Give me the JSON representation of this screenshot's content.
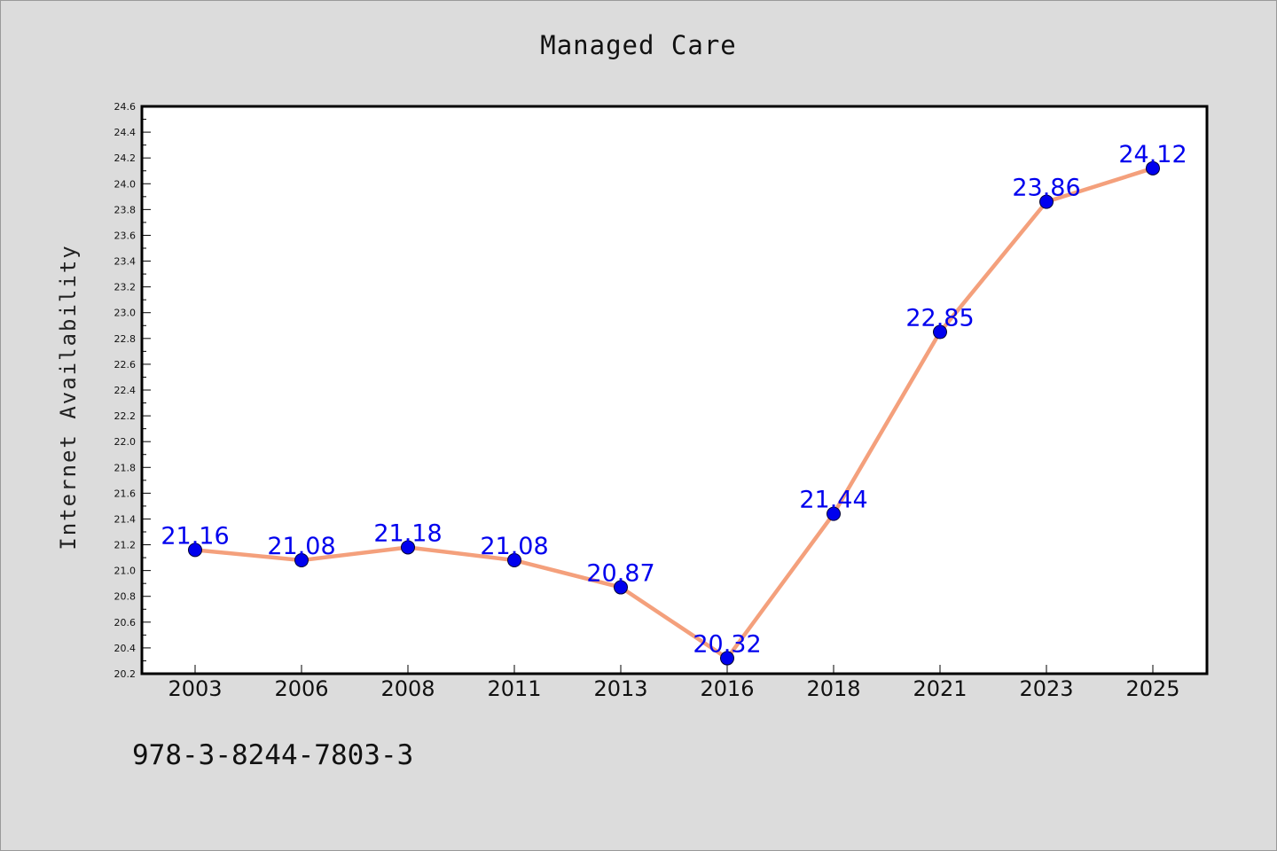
{
  "chart_data": {
    "type": "line",
    "title": "Managed Care",
    "xlabel": "",
    "ylabel": "Internet Availability",
    "categories": [
      "2003",
      "2006",
      "2008",
      "2011",
      "2013",
      "2016",
      "2018",
      "2021",
      "2023",
      "2025"
    ],
    "series": [
      {
        "values": [
          21.16,
          21.08,
          21.18,
          21.08,
          20.87,
          20.32,
          21.44,
          22.85,
          23.86,
          24.12
        ],
        "data_labels": [
          "21.16",
          "21.08",
          "21.18",
          "21.08",
          "20.87",
          "20.32",
          "21.44",
          "22.85",
          "23.86",
          "24.12"
        ]
      }
    ],
    "ylim": [
      20.2,
      24.6
    ],
    "yticks": [
      "20.2",
      "20.4",
      "20.6",
      "20.8",
      "21.0",
      "21.2",
      "21.4",
      "21.6",
      "21.8",
      "22.0",
      "22.2",
      "22.4",
      "22.6",
      "22.8",
      "23.0",
      "23.2",
      "23.4",
      "23.6",
      "23.8",
      "24.0",
      "24.2",
      "24.4",
      "24.6"
    ],
    "grid": false,
    "legend": "none",
    "colors": {
      "line": "#f4a07c",
      "marker": "#0000ee",
      "label": "#0000ee",
      "plot_background": "#ffffff",
      "figure_background": "#dcdcdc"
    }
  },
  "footer": {
    "code": "978-3-8244-7803-3"
  }
}
